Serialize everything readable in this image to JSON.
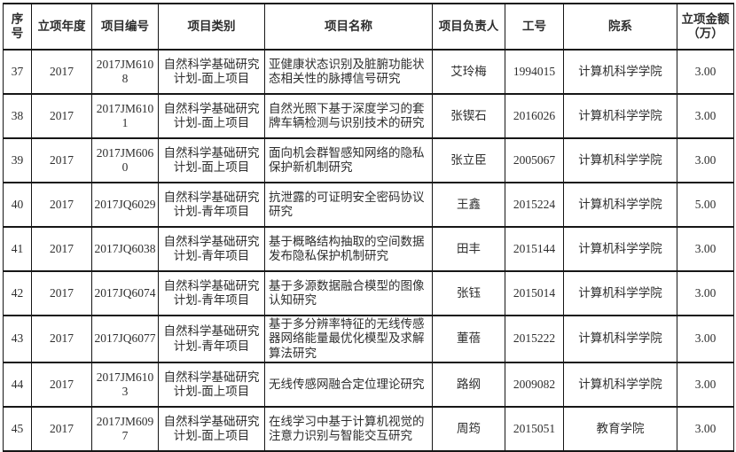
{
  "table": {
    "headers": [
      "序号",
      "立项年度",
      "项目编号",
      "项目类别",
      "项目名称",
      "项目负责人",
      "工号",
      "院系",
      "立项金额（万）"
    ],
    "rows": [
      [
        "37",
        "2017",
        "2017JM6108",
        "自然科学基础研究计划-面上项目",
        "亚健康状态识别及脏腑功能状态相关性的脉搏信号研究",
        "艾玲梅",
        "1994015",
        "计算机科学学院",
        "3.00"
      ],
      [
        "38",
        "2017",
        "2017JM6101",
        "自然科学基础研究计划-面上项目",
        "自然光照下基于深度学习的套牌车辆检测与识别技术的研究",
        "张锲石",
        "2016026",
        "计算机科学学院",
        "3.00"
      ],
      [
        "39",
        "2017",
        "2017JM6060",
        "自然科学基础研究计划-面上项目",
        "面向机会群智感知网络的隐私保护新机制研究",
        "张立臣",
        "2005067",
        "计算机科学学院",
        "3.00"
      ],
      [
        "40",
        "2017",
        "2017JQ6029",
        "自然科学基础研究计划-青年项目",
        "抗泄露的可证明安全密码协议研究",
        "王鑫",
        "2015224",
        "计算机科学学院",
        "5.00"
      ],
      [
        "41",
        "2017",
        "2017JQ6038",
        "自然科学基础研究计划-青年项目",
        "基于概略结构抽取的空间数据发布隐私保护机制研究",
        "田丰",
        "2015144",
        "计算机科学学院",
        "3.00"
      ],
      [
        "42",
        "2017",
        "2017JQ6074",
        "自然科学基础研究计划-青年项目",
        "基于多源数据融合模型的图像认知研究",
        "张钰",
        "2015014",
        "计算机科学学院",
        "3.00"
      ],
      [
        "43",
        "2017",
        "2017JQ6077",
        "自然科学基础研究计划-青年项目",
        "基于多分辨率特征的无线传感器网络能量最优化模型及求解算法研究",
        "董蓓",
        "2015222",
        "计算机科学学院",
        "3.00"
      ],
      [
        "44",
        "2017",
        "2017JM6103",
        "自然科学基础研究计划-面上项目",
        "无线传感网融合定位理论研究",
        "路纲",
        "2009082",
        "计算机科学学院",
        "3.00"
      ],
      [
        "45",
        "2017",
        "2017JM6097",
        "自然科学基础研究计划-面上项目",
        "在线学习中基于计算机视觉的注意力识别与智能交互研究",
        "周筠",
        "2015051",
        "教育学院",
        "3.00"
      ]
    ]
  }
}
